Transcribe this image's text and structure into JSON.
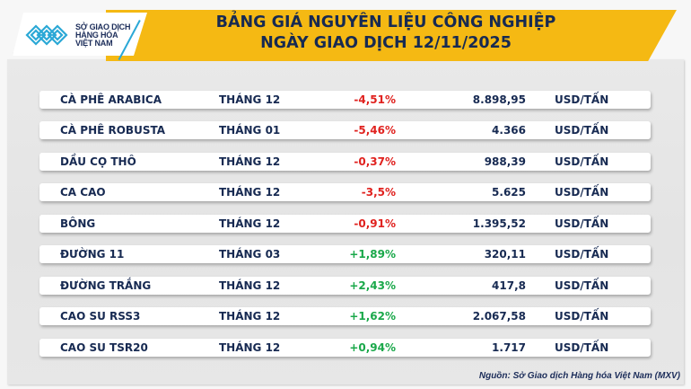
{
  "logo": {
    "lines": [
      "SỞ GIAO DỊCH",
      "HÀNG HÓA",
      "VIỆT NAM"
    ],
    "mark_color": "#2ba8d6"
  },
  "header": {
    "title_line1": "BẢNG GIÁ NGUYÊN LIỆU CÔNG NGHIỆP",
    "title_line2": "NGÀY GIAO DỊCH 12/11/2025",
    "banner_color": "#f5b913",
    "text_color": "#172a52"
  },
  "colors": {
    "negative": "#e0221f",
    "positive": "#1aa84a"
  },
  "rows": [
    {
      "name": "CÀ PHÊ ARABICA",
      "month": "THÁNG 12",
      "change": "-4,51%",
      "direction": "neg",
      "price": "8.898,95",
      "unit": "USD/TẤN"
    },
    {
      "name": "CÀ PHÊ ROBUSTA",
      "month": "THÁNG 01",
      "change": "-5,46%",
      "direction": "neg",
      "price": "4.366",
      "unit": "USD/TẤN"
    },
    {
      "name": "DẦU CỌ THÔ",
      "month": "THÁNG 12",
      "change": "-0,37%",
      "direction": "neg",
      "price": "988,39",
      "unit": "USD/TẤN"
    },
    {
      "name": "CA CAO",
      "month": "THÁNG 12",
      "change": "-3,5%",
      "direction": "neg",
      "price": "5.625",
      "unit": "USD/TẤN"
    },
    {
      "name": "BÔNG",
      "month": "THÁNG 12",
      "change": "-0,91%",
      "direction": "neg",
      "price": "1.395,52",
      "unit": "USD/TẤN"
    },
    {
      "name": "ĐƯỜNG 11",
      "month": "THÁNG 03",
      "change": "+1,89%",
      "direction": "pos",
      "price": "320,11",
      "unit": "USD/TẤN"
    },
    {
      "name": "ĐƯỜNG TRẮNG",
      "month": "THÁNG 12",
      "change": "+2,43%",
      "direction": "pos",
      "price": "417,8",
      "unit": "USD/TẤN"
    },
    {
      "name": "CAO SU RSS3",
      "month": "THÁNG 12",
      "change": "+1,62%",
      "direction": "pos",
      "price": "2.067,58",
      "unit": "USD/TẤN"
    },
    {
      "name": "CAO SU TSR20",
      "month": "THÁNG 12",
      "change": "+0,94%",
      "direction": "pos",
      "price": "1.717",
      "unit": "USD/TẤN"
    }
  ],
  "footer": {
    "source": "Nguồn: Sở Giao dịch Hàng hóa Việt Nam (MXV)"
  }
}
